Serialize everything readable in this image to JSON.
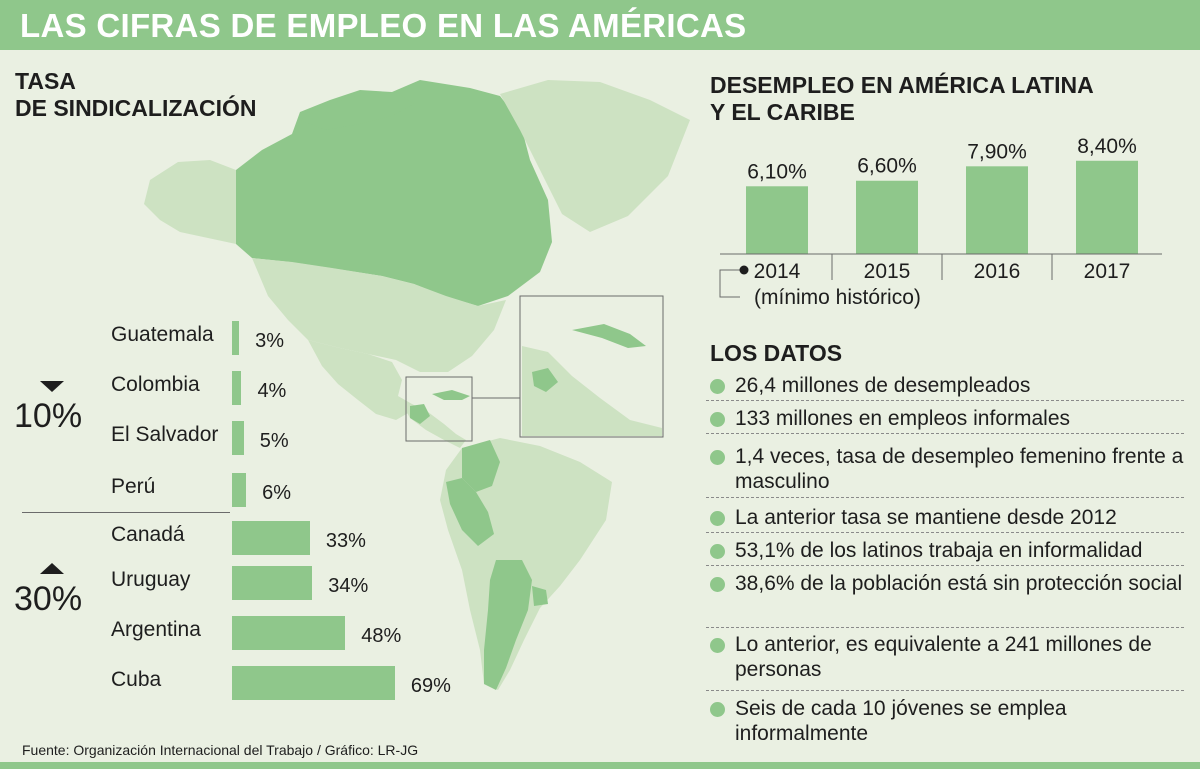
{
  "header": {
    "title": "LAS CIFRAS DE EMPLEO EN LAS AMÉRICAS"
  },
  "colors": {
    "accent": "#8fc78b",
    "land_light": "#cde2c2",
    "background": "#eaf0e2"
  },
  "sindicalizacion": {
    "title": "TASA\nDE SINDICALIZACIÓN",
    "groups": [
      {
        "label": "10%",
        "direction": "down"
      },
      {
        "label": "30%",
        "direction": "up"
      }
    ]
  },
  "desempleo": {
    "title": "DESEMPLEO EN AMÉRICA LATINA\nY EL CARIBE",
    "note": "(mínimo histórico)"
  },
  "datos": {
    "title": "LOS DATOS",
    "items": [
      "26,4 millones de desempleados",
      "133 millones en empleos informales",
      "1,4 veces, tasa de desempleo femenino frente a masculino",
      "La anterior tasa se mantiene desde 2012",
      "53,1% de los latinos trabaja en informalidad",
      "38,6% de la población está sin protección social",
      "Lo anterior, es equivalente a 241 millones de personas",
      "Seis de cada 10 jóvenes se emplea informalmente"
    ]
  },
  "source": "Fuente: Organización Internacional del Trabajo / Gráfico: LR-JG",
  "chart_data": [
    {
      "type": "bar",
      "orientation": "horizontal",
      "categories": [
        "Guatemala",
        "Colombia",
        "El Salvador",
        "Perú",
        "Canadá",
        "Uruguay",
        "Argentina",
        "Cuba"
      ],
      "values": [
        3,
        4,
        5,
        6,
        33,
        34,
        48,
        69
      ],
      "labels": [
        "3%",
        "4%",
        "5%",
        "6%",
        "33%",
        "34%",
        "48%",
        "69%"
      ],
      "title": "TASA DE SINDICALIZACIÓN",
      "unit": "%"
    },
    {
      "type": "bar",
      "categories": [
        "2014",
        "2015",
        "2016",
        "2017"
      ],
      "values": [
        6.1,
        6.6,
        7.9,
        8.4
      ],
      "labels": [
        "6,10%",
        "6,60%",
        "7,90%",
        "8,40%"
      ],
      "title": "DESEMPLEO EN AMÉRICA LATINA Y EL CARIBE",
      "unit": "%"
    }
  ]
}
